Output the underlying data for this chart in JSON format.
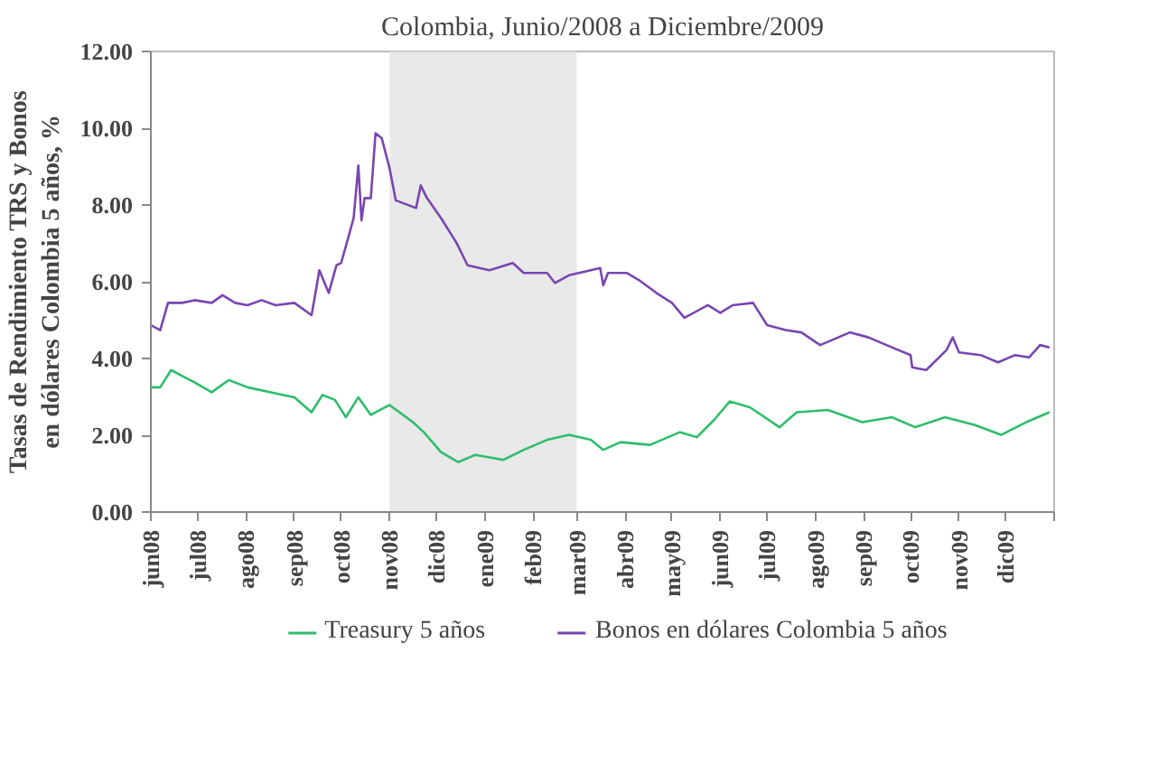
{
  "chart_data": {
    "type": "line",
    "title": "Colombia, Junio/2008 a Diciembre/2009",
    "ylabel": "Tasas de Rendimiento TRS y Bonos\nen dólares Colombia 5 años, %",
    "xlim": [
      "2008-06-01",
      "2010-01-01"
    ],
    "xticks": [
      {
        "value": "2008-06-01",
        "label": "jun08"
      },
      {
        "value": "2008-07-01",
        "label": "jul08"
      },
      {
        "value": "2008-08-01",
        "label": "ago08"
      },
      {
        "value": "2008-09-01",
        "label": "sep08"
      },
      {
        "value": "2008-10-01",
        "label": "oct08"
      },
      {
        "value": "2008-11-01",
        "label": "nov08"
      },
      {
        "value": "2008-12-01",
        "label": "dic08"
      },
      {
        "value": "2009-01-01",
        "label": "ene09"
      },
      {
        "value": "2009-02-01",
        "label": "feb09"
      },
      {
        "value": "2009-03-01",
        "label": "mar09"
      },
      {
        "value": "2009-04-01",
        "label": "abr09"
      },
      {
        "value": "2009-05-01",
        "label": "may09"
      },
      {
        "value": "2009-06-01",
        "label": "jun09"
      },
      {
        "value": "2009-07-01",
        "label": "jul09"
      },
      {
        "value": "2009-08-01",
        "label": "ago09"
      },
      {
        "value": "2009-09-01",
        "label": "sep09"
      },
      {
        "value": "2009-10-01",
        "label": "oct09"
      },
      {
        "value": "2009-11-01",
        "label": "nov09"
      },
      {
        "value": "2009-12-01",
        "label": "dic09"
      },
      {
        "value": "2010-01-01",
        "label": null
      }
    ],
    "ylim": [
      0,
      12
    ],
    "yticks": [
      {
        "value": 0,
        "label": "0.00"
      },
      {
        "value": 2,
        "label": "2.00"
      },
      {
        "value": 4,
        "label": "4.00"
      },
      {
        "value": 6,
        "label": "6.00"
      },
      {
        "value": 8,
        "label": "8.00"
      },
      {
        "value": 10,
        "label": "10.00"
      },
      {
        "value": 12,
        "label": "12.00"
      }
    ],
    "bands": [
      {
        "axis": "x",
        "from": "2008-11-01",
        "to": "2009-03-01",
        "color": "#e4e4e4"
      }
    ],
    "grid": false,
    "legend": "bottom",
    "marker": "none",
    "line_style": "solid",
    "series": [
      {
        "name": "Treasury 5 años",
        "color": "#2ebd6b",
        "x": [
          "2008-06-01",
          "2008-06-07",
          "2008-06-14",
          "2008-06-20",
          "2008-06-29",
          "2008-07-10",
          "2008-07-21",
          "2008-08-02",
          "2008-08-17",
          "2008-09-01",
          "2008-09-12",
          "2008-09-19",
          "2008-09-27",
          "2008-10-04",
          "2008-10-12",
          "2008-10-20",
          "2008-11-01",
          "2008-11-16",
          "2008-11-23",
          "2008-12-04",
          "2008-12-15",
          "2008-12-26",
          "2009-01-13",
          "2009-01-26",
          "2009-02-10",
          "2009-02-24",
          "2009-03-10",
          "2009-03-18",
          "2009-03-29",
          "2009-04-17",
          "2009-05-06",
          "2009-05-17",
          "2009-05-28",
          "2009-06-07",
          "2009-06-20",
          "2009-07-09",
          "2009-07-20",
          "2009-08-09",
          "2009-08-31",
          "2009-09-19",
          "2009-10-04",
          "2009-10-23",
          "2009-11-11",
          "2009-11-28",
          "2009-12-14",
          "2009-12-29"
        ],
        "values": [
          3.25,
          3.25,
          3.7,
          3.57,
          3.38,
          3.12,
          3.44,
          3.25,
          3.12,
          2.99,
          2.6,
          3.05,
          2.92,
          2.47,
          2.99,
          2.53,
          2.79,
          2.34,
          2.08,
          1.56,
          1.3,
          1.49,
          1.36,
          1.62,
          1.88,
          2.01,
          1.88,
          1.62,
          1.82,
          1.75,
          2.08,
          1.95,
          2.4,
          2.88,
          2.73,
          2.21,
          2.6,
          2.66,
          2.34,
          2.47,
          2.21,
          2.47,
          2.27,
          2.01,
          2.34,
          2.6
        ]
      },
      {
        "name": "Bonos en dólares Colombia 5 años",
        "color": "#7a45b0",
        "x": [
          "2008-06-01",
          "2008-06-07",
          "2008-06-12",
          "2008-06-21",
          "2008-06-29",
          "2008-07-10",
          "2008-07-17",
          "2008-07-25",
          "2008-08-02",
          "2008-08-11",
          "2008-08-20",
          "2008-09-01",
          "2008-09-12",
          "2008-09-14",
          "2008-09-17",
          "2008-09-23",
          "2008-09-28",
          "2008-10-01",
          "2008-10-09",
          "2008-10-12",
          "2008-10-14",
          "2008-10-16",
          "2008-10-20",
          "2008-10-23",
          "2008-10-27",
          "2008-11-01",
          "2008-11-05",
          "2008-11-18",
          "2008-11-21",
          "2008-11-25",
          "2008-12-04",
          "2008-12-14",
          "2008-12-21",
          "2009-01-04",
          "2009-01-19",
          "2009-01-26",
          "2009-02-10",
          "2009-02-15",
          "2009-02-24",
          "2009-03-10",
          "2009-03-16",
          "2009-03-18",
          "2009-03-21",
          "2009-04-02",
          "2009-04-10",
          "2009-04-21",
          "2009-05-01",
          "2009-05-09",
          "2009-05-24",
          "2009-06-01",
          "2009-06-09",
          "2009-06-22",
          "2009-07-01",
          "2009-07-13",
          "2009-07-23",
          "2009-08-04",
          "2009-08-23",
          "2009-09-04",
          "2009-09-19",
          "2009-10-01",
          "2009-10-02",
          "2009-10-11",
          "2009-10-24",
          "2009-10-28",
          "2009-11-01",
          "2009-11-15",
          "2009-11-26",
          "2009-12-07",
          "2009-12-16",
          "2009-12-23",
          "2009-12-29"
        ],
        "values": [
          4.87,
          4.74,
          5.45,
          5.45,
          5.52,
          5.45,
          5.65,
          5.45,
          5.39,
          5.52,
          5.39,
          5.45,
          5.13,
          5.58,
          6.3,
          5.71,
          6.43,
          6.49,
          7.66,
          9.03,
          7.6,
          8.18,
          8.18,
          9.87,
          9.74,
          8.96,
          8.12,
          7.92,
          8.51,
          8.18,
          7.66,
          7.01,
          6.43,
          6.3,
          6.49,
          6.23,
          6.23,
          5.97,
          6.17,
          6.3,
          6.36,
          5.91,
          6.23,
          6.23,
          6.04,
          5.71,
          5.45,
          5.06,
          5.39,
          5.19,
          5.39,
          5.45,
          4.87,
          4.74,
          4.68,
          4.35,
          4.68,
          4.55,
          4.29,
          4.09,
          3.77,
          3.7,
          4.22,
          4.55,
          4.16,
          4.09,
          3.9,
          4.09,
          4.03,
          4.35,
          4.29
        ]
      }
    ]
  }
}
